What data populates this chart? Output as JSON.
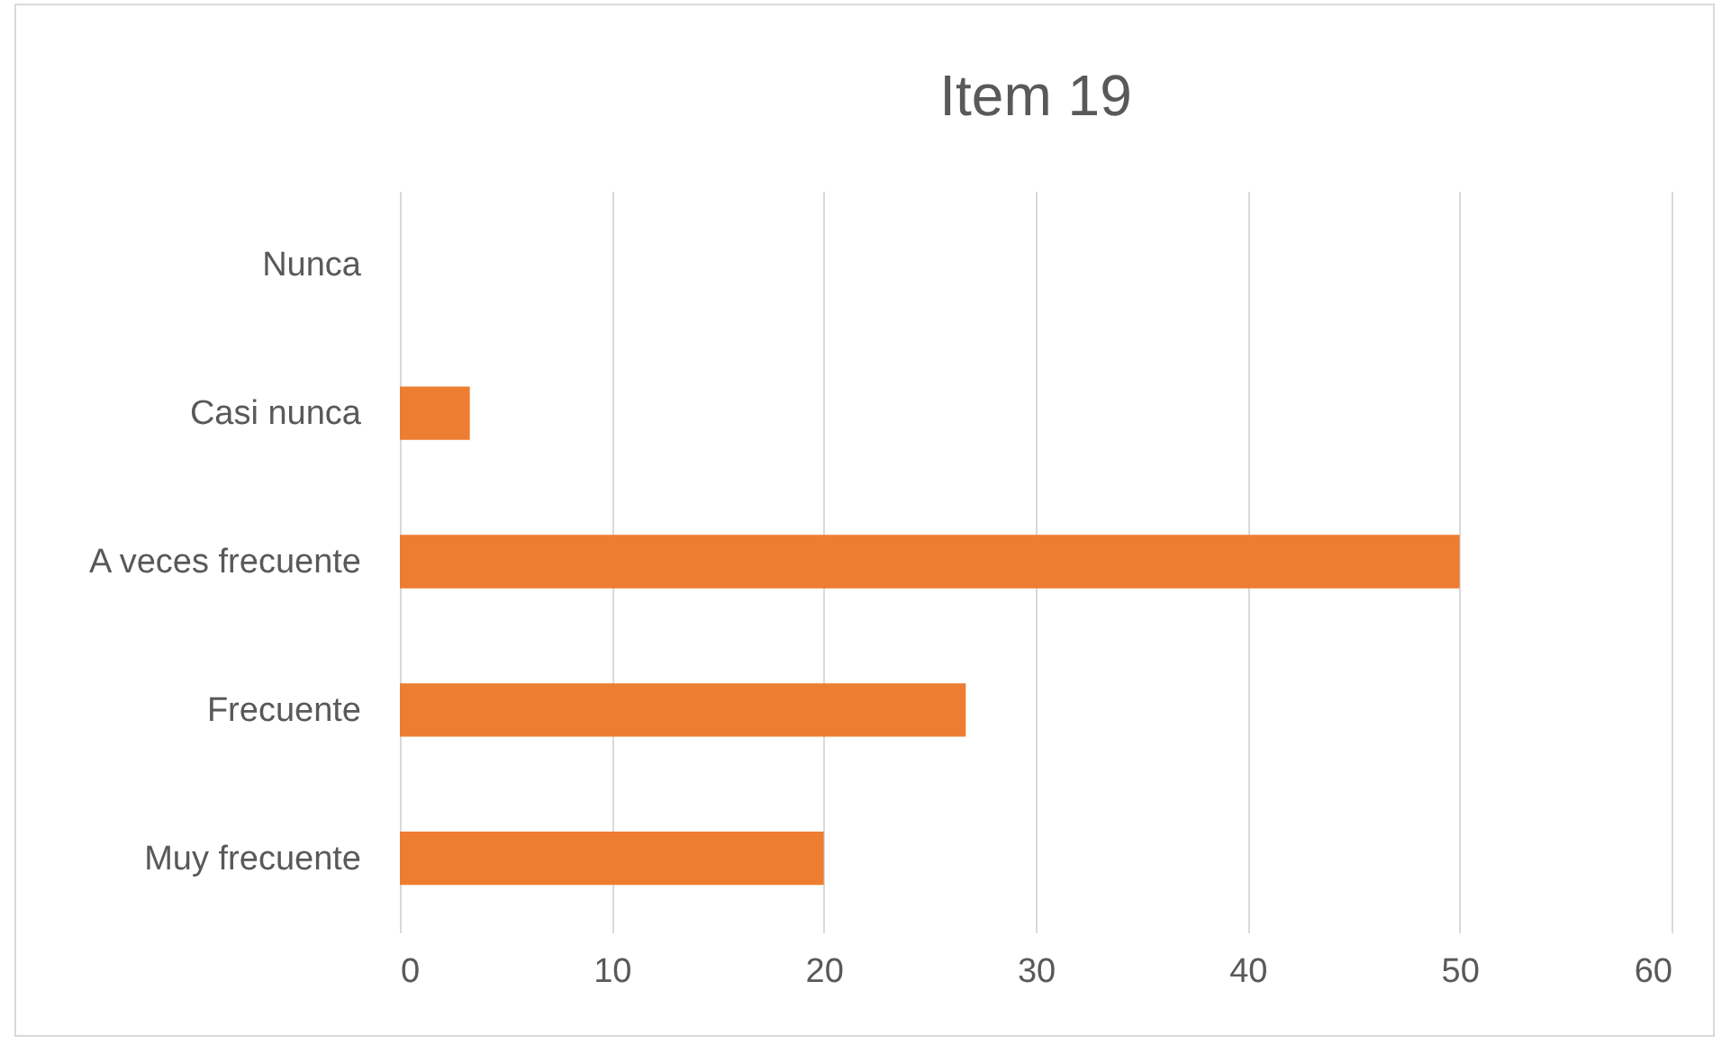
{
  "chart_data": {
    "type": "bar",
    "orientation": "horizontal",
    "title": "Item 19",
    "categories": [
      "Nunca",
      "Casi nunca",
      "A veces frecuente",
      "Frecuente",
      "Muy frecuente"
    ],
    "values": [
      0,
      3.3,
      50,
      26.7,
      20
    ],
    "color": "#ed7d31",
    "xlim": [
      0,
      60
    ],
    "xticks": [
      0,
      10,
      20,
      30,
      40,
      50,
      60
    ],
    "grid": "x"
  }
}
